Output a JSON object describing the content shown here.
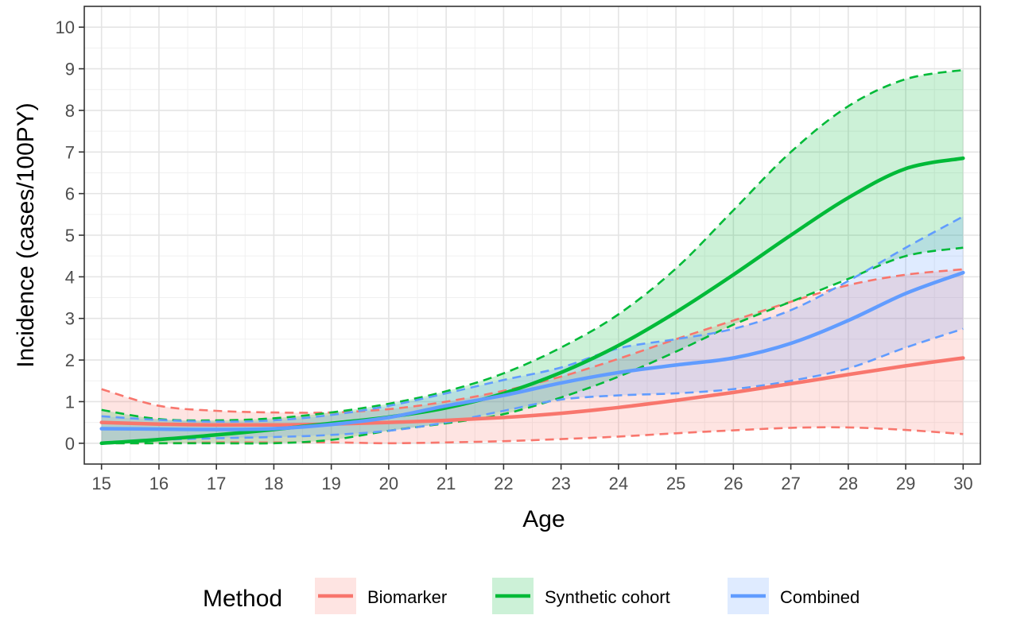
{
  "chart_data": {
    "type": "line",
    "xlabel": "Age",
    "ylabel": "Incidence (cases/100PY)",
    "xlim": [
      14.7,
      30.3
    ],
    "ylim": [
      -0.5,
      10.5
    ],
    "x_ticks": [
      15,
      16,
      17,
      18,
      19,
      20,
      21,
      22,
      23,
      24,
      25,
      26,
      27,
      28,
      29,
      30
    ],
    "y_ticks": [
      0,
      1,
      2,
      3,
      4,
      5,
      6,
      7,
      8,
      9,
      10
    ],
    "grid": true,
    "legend": {
      "title": "Method",
      "position": "bottom"
    },
    "x": [
      15,
      16,
      17,
      18,
      19,
      20,
      21,
      22,
      23,
      24,
      25,
      26,
      27,
      28,
      29,
      30
    ],
    "series": [
      {
        "name": "Biomarker",
        "color": "#F8766D",
        "values": [
          0.5,
          0.46,
          0.44,
          0.44,
          0.46,
          0.5,
          0.55,
          0.62,
          0.72,
          0.86,
          1.03,
          1.22,
          1.43,
          1.65,
          1.86,
          2.05
        ],
        "lower": [
          0.0,
          0.0,
          0.02,
          0.02,
          0.02,
          0.0,
          0.02,
          0.05,
          0.1,
          0.16,
          0.24,
          0.31,
          0.37,
          0.38,
          0.32,
          0.22
        ],
        "upper": [
          1.3,
          0.9,
          0.78,
          0.74,
          0.74,
          0.82,
          1.0,
          1.26,
          1.6,
          2.03,
          2.5,
          2.95,
          3.4,
          3.8,
          4.05,
          4.18
        ]
      },
      {
        "name": "Synthetic cohort",
        "color": "#00BA38",
        "values": [
          0.0,
          0.09,
          0.2,
          0.33,
          0.48,
          0.63,
          0.85,
          1.2,
          1.7,
          2.35,
          3.15,
          4.05,
          5.0,
          5.9,
          6.6,
          6.85
        ],
        "lower": [
          0.0,
          0.0,
          0.0,
          0.0,
          0.08,
          0.3,
          0.48,
          0.7,
          1.1,
          1.6,
          2.2,
          2.85,
          3.4,
          3.95,
          4.5,
          4.7
        ],
        "upper": [
          0.8,
          0.58,
          0.55,
          0.6,
          0.74,
          0.95,
          1.25,
          1.68,
          2.3,
          3.1,
          4.2,
          5.6,
          7.0,
          8.1,
          8.75,
          8.97
        ]
      },
      {
        "name": "Combined",
        "color": "#619CFF",
        "values": [
          0.35,
          0.34,
          0.33,
          0.35,
          0.45,
          0.62,
          0.9,
          1.15,
          1.45,
          1.7,
          1.88,
          2.05,
          2.4,
          2.95,
          3.6,
          4.1
        ],
        "lower": [
          0.0,
          0.08,
          0.12,
          0.15,
          0.2,
          0.3,
          0.5,
          0.78,
          1.05,
          1.15,
          1.2,
          1.3,
          1.5,
          1.8,
          2.3,
          2.75
        ],
        "upper": [
          0.65,
          0.56,
          0.52,
          0.55,
          0.68,
          0.9,
          1.2,
          1.52,
          1.82,
          2.28,
          2.5,
          2.75,
          3.2,
          3.9,
          4.7,
          5.45
        ]
      }
    ]
  }
}
